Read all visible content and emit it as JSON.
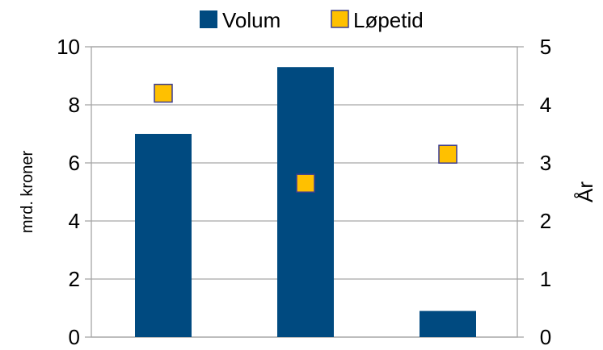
{
  "chart_data": {
    "type": "bar",
    "categories": [
      "",
      "",
      ""
    ],
    "series": [
      {
        "name": "Volum",
        "type": "bar",
        "axis": "left",
        "values": [
          7.0,
          9.3,
          0.9
        ],
        "color": "#004A80"
      },
      {
        "name": "Løpetid",
        "type": "scatter",
        "axis": "right",
        "values": [
          4.2,
          2.65,
          3.15
        ],
        "color": "#FFC000",
        "edge_color": "#3D3D8F"
      }
    ],
    "ylabel": "mrd. kroner",
    "y2label": "År",
    "ylim": [
      0,
      10
    ],
    "y2lim": [
      0,
      5
    ],
    "yticks": [
      "0",
      "2",
      "4",
      "6",
      "8",
      "10"
    ],
    "y2ticks": [
      "0",
      "1",
      "2",
      "3",
      "4",
      "5"
    ],
    "grid": true,
    "legend": "top-center",
    "gridline_color": "#A6A6A6",
    "plot_border_color": "#A6A6A6"
  }
}
